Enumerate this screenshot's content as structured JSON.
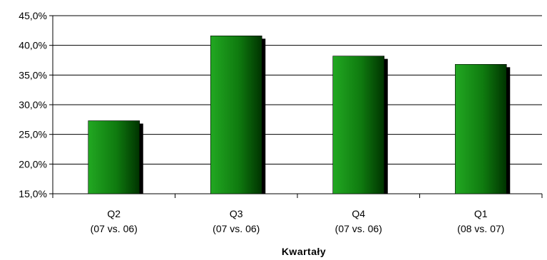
{
  "chart_data": {
    "type": "bar",
    "categories": [
      {
        "line1": "Q2",
        "line2": "(07 vs. 06)"
      },
      {
        "line1": "Q3",
        "line2": "(07 vs. 06)"
      },
      {
        "line1": "Q4",
        "line2": "(07 vs. 06)"
      },
      {
        "line1": "Q1",
        "line2": "(08 vs. 07)"
      }
    ],
    "values": [
      27.3,
      41.6,
      38.2,
      36.8
    ],
    "title": "",
    "xlabel": "Kwartały",
    "ylabel": "",
    "ylim": [
      15,
      45
    ],
    "yticks": [
      "15,0%",
      "20,0%",
      "25,0%",
      "30,0%",
      "35,0%",
      "40,0%",
      "45,0%"
    ],
    "grid": true,
    "legend": "none",
    "colors": {
      "bar_light": "#22a822",
      "bar_mid": "#0f7a0f",
      "bar_dark": "#003300",
      "shadow": "#000000",
      "grid": "#000000"
    }
  }
}
